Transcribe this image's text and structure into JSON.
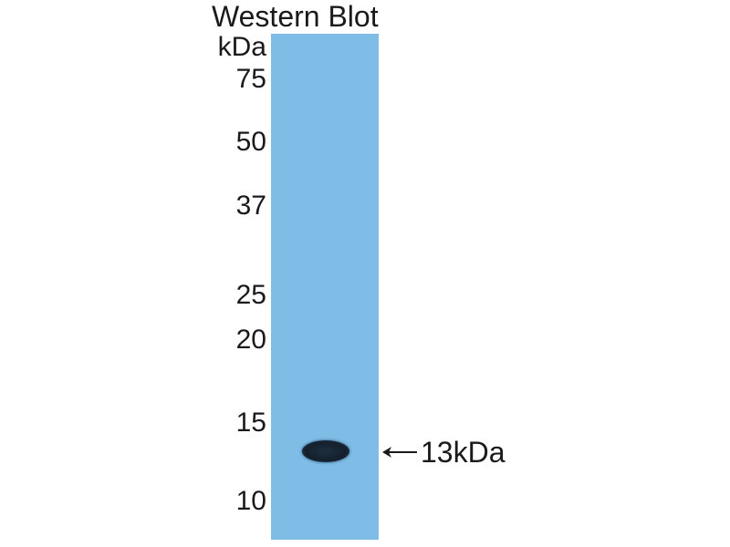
{
  "title": "Western Blot",
  "unit_label": "kDa",
  "markers": [
    {
      "label": "75",
      "kda": 75
    },
    {
      "label": "50",
      "kda": 50
    },
    {
      "label": "37",
      "kda": 37
    },
    {
      "label": "25",
      "kda": 25
    },
    {
      "label": "20",
      "kda": 20
    },
    {
      "label": "15",
      "kda": 15
    },
    {
      "label": "10",
      "kda": 10
    }
  ],
  "band": {
    "label": "13kDa",
    "kda": 13
  },
  "colors": {
    "lane": "#7fbce6",
    "band": "#14202c"
  },
  "icons": {
    "arrow": "arrow-left-icon"
  }
}
